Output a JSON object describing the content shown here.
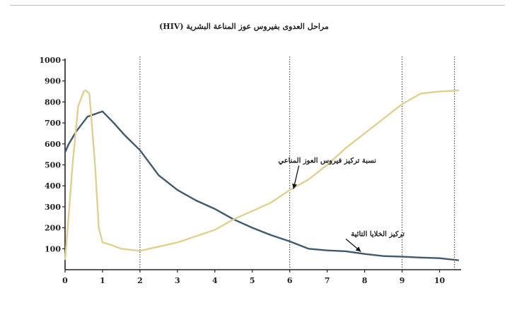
{
  "chart_data": {
    "type": "line",
    "title": "مراحل العدوى بفيروس عوز المناعة البشرية (HIV)",
    "xlabel": "",
    "ylabel": "",
    "xlim": [
      0,
      10.5
    ],
    "ylim": [
      0,
      1000
    ],
    "x_ticks": [
      "0",
      "1",
      "2",
      "3",
      "4",
      "5",
      "6",
      "7",
      "8",
      "9",
      "10"
    ],
    "y_ticks": [
      "100",
      "200",
      "300",
      "400",
      "500",
      "600",
      "700",
      "800",
      "900",
      "1000"
    ],
    "grid": false,
    "stage_dividers_x": [
      2,
      6,
      9,
      10.4
    ],
    "series": [
      {
        "name": "تركيز الخلايا التائية",
        "color": "#3f5a6e",
        "x": [
          0,
          0.1,
          0.3,
          0.6,
          1.0,
          1.3,
          1.6,
          2.0,
          2.5,
          3.0,
          3.5,
          4.0,
          4.5,
          5.0,
          5.5,
          6.0,
          6.5,
          7.0,
          7.5,
          8.0,
          8.5,
          9.0,
          9.5,
          10.0,
          10.5
        ],
        "values": [
          560,
          600,
          660,
          730,
          755,
          700,
          640,
          570,
          450,
          380,
          330,
          290,
          240,
          200,
          165,
          135,
          100,
          92,
          88,
          75,
          65,
          62,
          58,
          55,
          45
        ]
      },
      {
        "name": "نسبة تركيز فيروس العوز المناعي",
        "color": "#e0d090",
        "x": [
          0,
          0.05,
          0.2,
          0.35,
          0.5,
          0.55,
          0.65,
          0.8,
          0.9,
          1.0,
          1.2,
          1.5,
          2.0,
          2.5,
          3.0,
          3.5,
          4.0,
          4.5,
          5.0,
          5.5,
          6.0,
          6.5,
          7.0,
          7.5,
          8.0,
          8.5,
          9.0,
          9.5,
          10.0,
          10.5
        ],
        "values": [
          50,
          150,
          500,
          780,
          850,
          855,
          840,
          500,
          200,
          130,
          120,
          100,
          90,
          110,
          130,
          160,
          190,
          240,
          280,
          320,
          380,
          430,
          500,
          580,
          650,
          720,
          790,
          840,
          850,
          855
        ]
      }
    ],
    "annotations": [
      {
        "text": "نسبة تركيز فيروس العوز المناعي",
        "x": 7.0,
        "y": 510,
        "arrow_to_x": 6.1,
        "arrow_to_y": 385
      },
      {
        "text": "تركيز الخلايا التائية",
        "x": 8.35,
        "y": 160,
        "arrow_to_x": 7.9,
        "arrow_to_y": 86
      }
    ]
  }
}
